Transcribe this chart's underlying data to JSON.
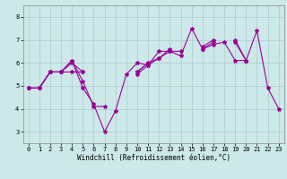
{
  "xlabel": "Windchill (Refroidissement éolien,°C)",
  "x_values": [
    0,
    1,
    2,
    3,
    4,
    5,
    6,
    7,
    8,
    9,
    10,
    11,
    12,
    13,
    14,
    15,
    16,
    17,
    18,
    19,
    20,
    21,
    22,
    23
  ],
  "series": [
    [
      4.9,
      4.9,
      5.6,
      5.6,
      6.1,
      4.9,
      4.2,
      3.0,
      3.9,
      5.5,
      6.0,
      5.9,
      6.5,
      6.5,
      6.3,
      7.5,
      6.6,
      6.8,
      6.9,
      6.1,
      6.1,
      7.4,
      4.9,
      4.0
    ],
    [
      4.9,
      4.9,
      5.6,
      5.6,
      6.1,
      5.2,
      4.1,
      4.1,
      null,
      null,
      5.5,
      5.9,
      6.2,
      6.5,
      6.5,
      null,
      6.7,
      7.0,
      null,
      6.9,
      6.1,
      null,
      null,
      null
    ],
    [
      4.9,
      4.9,
      5.6,
      5.6,
      6.0,
      5.6,
      null,
      null,
      null,
      null,
      5.6,
      6.0,
      6.2,
      6.6,
      null,
      null,
      6.6,
      6.9,
      null,
      7.0,
      6.1,
      null,
      null,
      null
    ],
    [
      4.9,
      4.9,
      5.6,
      5.6,
      5.6,
      5.6,
      null,
      null,
      null,
      null,
      5.6,
      6.0,
      null,
      null,
      null,
      null,
      null,
      null,
      null,
      null,
      6.1,
      null,
      null,
      null
    ]
  ],
  "line_color": "#990099",
  "bg_color": "#cce8e8",
  "grid_color": "#aacccc",
  "ylim": [
    2.5,
    8.5
  ],
  "xlim": [
    -0.5,
    23.5
  ],
  "yticks": [
    3,
    4,
    5,
    6,
    7,
    8
  ],
  "xticks": [
    0,
    1,
    2,
    3,
    4,
    5,
    6,
    7,
    8,
    9,
    10,
    11,
    12,
    13,
    14,
    15,
    16,
    17,
    18,
    19,
    20,
    21,
    22,
    23
  ],
  "tick_fontsize": 5.0,
  "xlabel_fontsize": 5.5,
  "marker_size": 3.0,
  "linewidth": 0.8
}
